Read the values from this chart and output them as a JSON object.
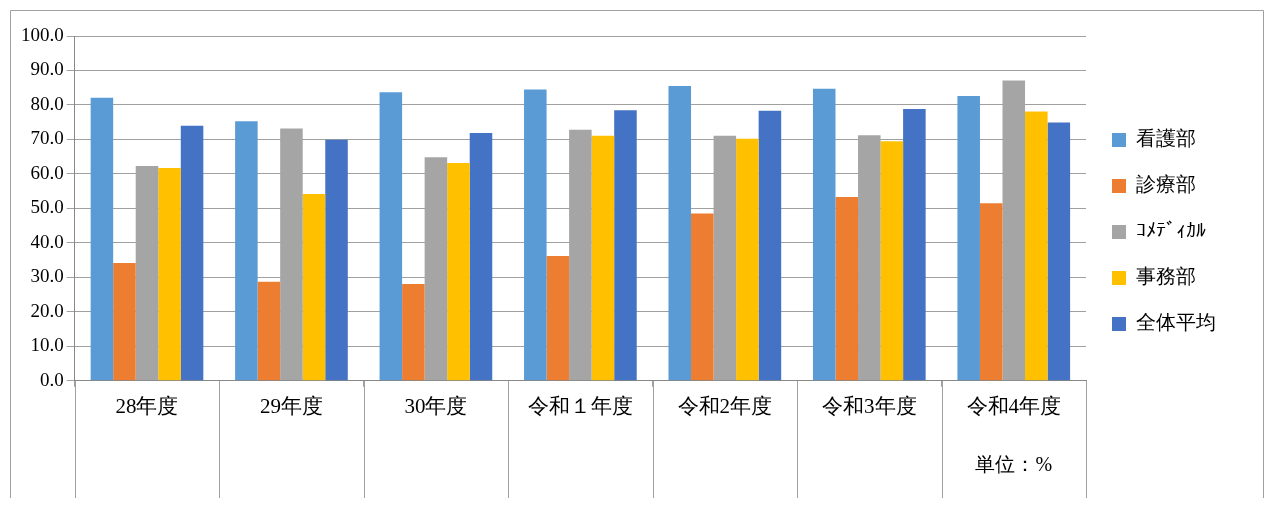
{
  "chart_data": {
    "type": "bar",
    "categories": [
      "28年度",
      "29年度",
      "30年度",
      "令和１年度",
      "令和2年度",
      "令和3年度",
      "令和4年度"
    ],
    "series": [
      {
        "name": "看護部",
        "color": "#5b9bd5",
        "values": [
          82.1,
          75.3,
          83.7,
          84.5,
          85.5,
          84.7,
          82.6
        ]
      },
      {
        "name": "診療部",
        "color": "#ed7d31",
        "values": [
          34.2,
          28.7,
          28.1,
          36.2,
          48.5,
          53.3,
          51.5
        ]
      },
      {
        "name": "ｺﾒﾃﾞｨｶﾙ",
        "color": "#a5a5a5",
        "values": [
          62.3,
          73.2,
          64.8,
          72.8,
          71.1,
          71.2,
          87.1
        ]
      },
      {
        "name": "事務部",
        "color": "#ffc000",
        "values": [
          61.7,
          54.2,
          63.2,
          71.1,
          70.2,
          69.5,
          78.1
        ]
      },
      {
        "name": "全体平均",
        "color": "#4472c4",
        "values": [
          74.0,
          69.9,
          71.9,
          78.5,
          78.3,
          78.8,
          74.9
        ]
      }
    ],
    "ylim": [
      0,
      100
    ],
    "yticks": [
      {
        "value": 0,
        "label": "0.0"
      },
      {
        "value": 10,
        "label": "10.0"
      },
      {
        "value": 20,
        "label": "20.0"
      },
      {
        "value": 30,
        "label": "30.0"
      },
      {
        "value": 40,
        "label": "40.0"
      },
      {
        "value": 50,
        "label": "50.0"
      },
      {
        "value": 60,
        "label": "60.0"
      },
      {
        "value": 70,
        "label": "70.0"
      },
      {
        "value": 80,
        "label": "80.0"
      },
      {
        "value": 90,
        "label": "90.0"
      },
      {
        "value": 100,
        "label": "100.0"
      }
    ],
    "grid": "y",
    "legend": "right",
    "annotations": [
      "単位：%"
    ]
  }
}
